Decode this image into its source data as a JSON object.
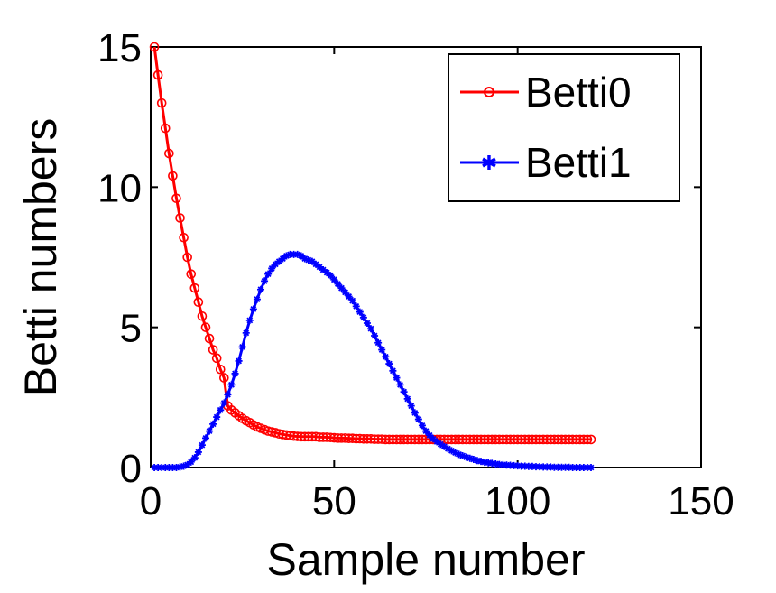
{
  "chart_data": {
    "type": "line",
    "title": "",
    "xlabel": "Sample number",
    "ylabel": "Betti numbers",
    "xlim": [
      0,
      150
    ],
    "ylim": [
      0,
      15
    ],
    "xticks": [
      0,
      50,
      100,
      150
    ],
    "yticks": [
      0,
      5,
      10,
      15
    ],
    "grid": false,
    "legend_position": "top-right",
    "series": [
      {
        "name": "Betti0",
        "color": "#ff0000",
        "marker": "circle",
        "x": [
          1,
          2,
          3,
          4,
          5,
          6,
          7,
          8,
          9,
          10,
          11,
          12,
          13,
          14,
          15,
          16,
          17,
          18,
          19,
          20,
          21,
          22,
          23,
          24,
          25,
          26,
          27,
          28,
          29,
          30,
          31,
          32,
          33,
          34,
          35,
          36,
          37,
          38,
          39,
          40,
          41,
          42,
          43,
          44,
          45,
          46,
          47,
          48,
          49,
          50,
          51,
          52,
          53,
          54,
          55,
          56,
          57,
          58,
          59,
          60,
          61,
          62,
          63,
          64,
          65,
          66,
          67,
          68,
          69,
          70,
          71,
          72,
          73,
          74,
          75,
          76,
          77,
          78,
          79,
          80,
          81,
          82,
          83,
          84,
          85,
          86,
          87,
          88,
          89,
          90,
          91,
          92,
          93,
          94,
          95,
          96,
          97,
          98,
          99,
          100,
          101,
          102,
          103,
          104,
          105,
          106,
          107,
          108,
          109,
          110,
          111,
          112,
          113,
          114,
          115,
          116,
          117,
          118,
          119,
          120
        ],
        "y": [
          15,
          14,
          13,
          12.1,
          11.2,
          10.4,
          9.6,
          8.9,
          8.2,
          7.5,
          6.9,
          6.4,
          5.9,
          5.4,
          5.0,
          4.6,
          4.2,
          3.9,
          3.5,
          3.2,
          2.2,
          2.05,
          1.95,
          1.85,
          1.75,
          1.67,
          1.6,
          1.52,
          1.45,
          1.4,
          1.35,
          1.3,
          1.27,
          1.24,
          1.2,
          1.18,
          1.16,
          1.14,
          1.12,
          1.11,
          1.1,
          1.1,
          1.1,
          1.1,
          1.1,
          1.08,
          1.08,
          1.08,
          1.07,
          1.06,
          1.05,
          1.05,
          1.05,
          1.04,
          1.04,
          1.03,
          1.03,
          1.02,
          1.02,
          1.02,
          1.01,
          1.01,
          1.01,
          1,
          1,
          1,
          1,
          1,
          1,
          1,
          1,
          1,
          1,
          1,
          1,
          1,
          1,
          1,
          1,
          1,
          1,
          1,
          1,
          1,
          1,
          1,
          1,
          1,
          1,
          1,
          1,
          1,
          1,
          1,
          1,
          1,
          1,
          1,
          1,
          1,
          1,
          1,
          1,
          1,
          1,
          1,
          1,
          1,
          1,
          1,
          1,
          1,
          1,
          1,
          1,
          1,
          1,
          1,
          1,
          1
        ]
      },
      {
        "name": "Betti1",
        "color": "#0000ff",
        "marker": "star",
        "x": [
          1,
          2,
          3,
          4,
          5,
          6,
          7,
          8,
          9,
          10,
          11,
          12,
          13,
          14,
          15,
          16,
          17,
          18,
          19,
          20,
          21,
          22,
          23,
          24,
          25,
          26,
          27,
          28,
          29,
          30,
          31,
          32,
          33,
          34,
          35,
          36,
          37,
          38,
          39,
          40,
          41,
          42,
          43,
          44,
          45,
          46,
          47,
          48,
          49,
          50,
          51,
          52,
          53,
          54,
          55,
          56,
          57,
          58,
          59,
          60,
          61,
          62,
          63,
          64,
          65,
          66,
          67,
          68,
          69,
          70,
          71,
          72,
          73,
          74,
          75,
          76,
          77,
          78,
          79,
          80,
          81,
          82,
          83,
          84,
          85,
          86,
          87,
          88,
          89,
          90,
          91,
          92,
          93,
          94,
          95,
          96,
          97,
          98,
          99,
          100,
          101,
          102,
          103,
          104,
          105,
          106,
          107,
          108,
          109,
          110,
          111,
          112,
          113,
          114,
          115,
          116,
          117,
          118,
          119,
          120
        ],
        "y": [
          0,
          0,
          0,
          0,
          0,
          0,
          0,
          0.02,
          0.05,
          0.1,
          0.2,
          0.35,
          0.55,
          0.8,
          1.05,
          1.3,
          1.55,
          1.8,
          2.05,
          2.3,
          2.6,
          2.95,
          3.35,
          3.8,
          4.3,
          4.8,
          5.25,
          5.65,
          6.0,
          6.35,
          6.65,
          6.9,
          7.1,
          7.25,
          7.35,
          7.45,
          7.55,
          7.6,
          7.6,
          7.6,
          7.55,
          7.45,
          7.4,
          7.35,
          7.25,
          7.15,
          7.05,
          6.95,
          6.85,
          6.7,
          6.55,
          6.4,
          6.25,
          6.1,
          5.95,
          5.75,
          5.55,
          5.35,
          5.15,
          4.95,
          4.7,
          4.45,
          4.2,
          3.95,
          3.7,
          3.45,
          3.2,
          2.95,
          2.7,
          2.45,
          2.2,
          1.95,
          1.72,
          1.5,
          1.3,
          1.15,
          1.02,
          0.92,
          0.83,
          0.75,
          0.67,
          0.6,
          0.53,
          0.47,
          0.42,
          0.37,
          0.33,
          0.29,
          0.25,
          0.22,
          0.19,
          0.17,
          0.15,
          0.13,
          0.11,
          0.1,
          0.09,
          0.08,
          0.07,
          0.06,
          0.05,
          0.05,
          0.04,
          0.04,
          0.03,
          0.03,
          0.02,
          0.02,
          0.02,
          0.01,
          0.01,
          0.01,
          0.01,
          0.01,
          0,
          0,
          0,
          0,
          0,
          0
        ]
      }
    ]
  }
}
